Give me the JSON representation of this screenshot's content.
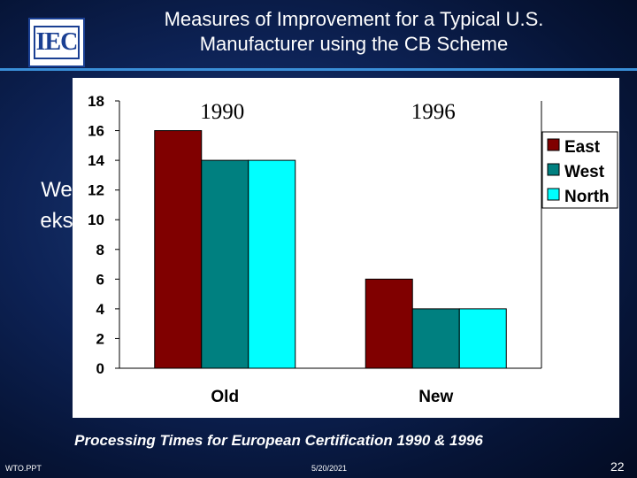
{
  "slide": {
    "title_line1": "Measures of Improvement for a Typical U.S.",
    "title_line2": "Manufacturer using the CB Scheme",
    "logo_text": "IEC",
    "ylabel_vertical": "Weeks",
    "caption": "Processing Times for European Certification 1990 & 1996",
    "footer_left": "WTO.PPT",
    "footer_date": "5/20/2021",
    "page_number": "22"
  },
  "chart_data": {
    "type": "bar",
    "categories": [
      "Old",
      "New"
    ],
    "series": [
      {
        "name": "East",
        "values": [
          16,
          6
        ],
        "color": "#800000"
      },
      {
        "name": "West",
        "values": [
          14,
          4
        ],
        "color": "#008080"
      },
      {
        "name": "North",
        "values": [
          14,
          4
        ],
        "color": "#00ffff"
      }
    ],
    "yticks": [
      "0",
      "2",
      "4",
      "6",
      "8",
      "10",
      "12",
      "14",
      "16",
      "18"
    ],
    "ylim": [
      0,
      18
    ],
    "annotations": [
      "1990",
      "1996"
    ],
    "ylabel": "Weeks",
    "grid": false,
    "legend_position": "right"
  }
}
